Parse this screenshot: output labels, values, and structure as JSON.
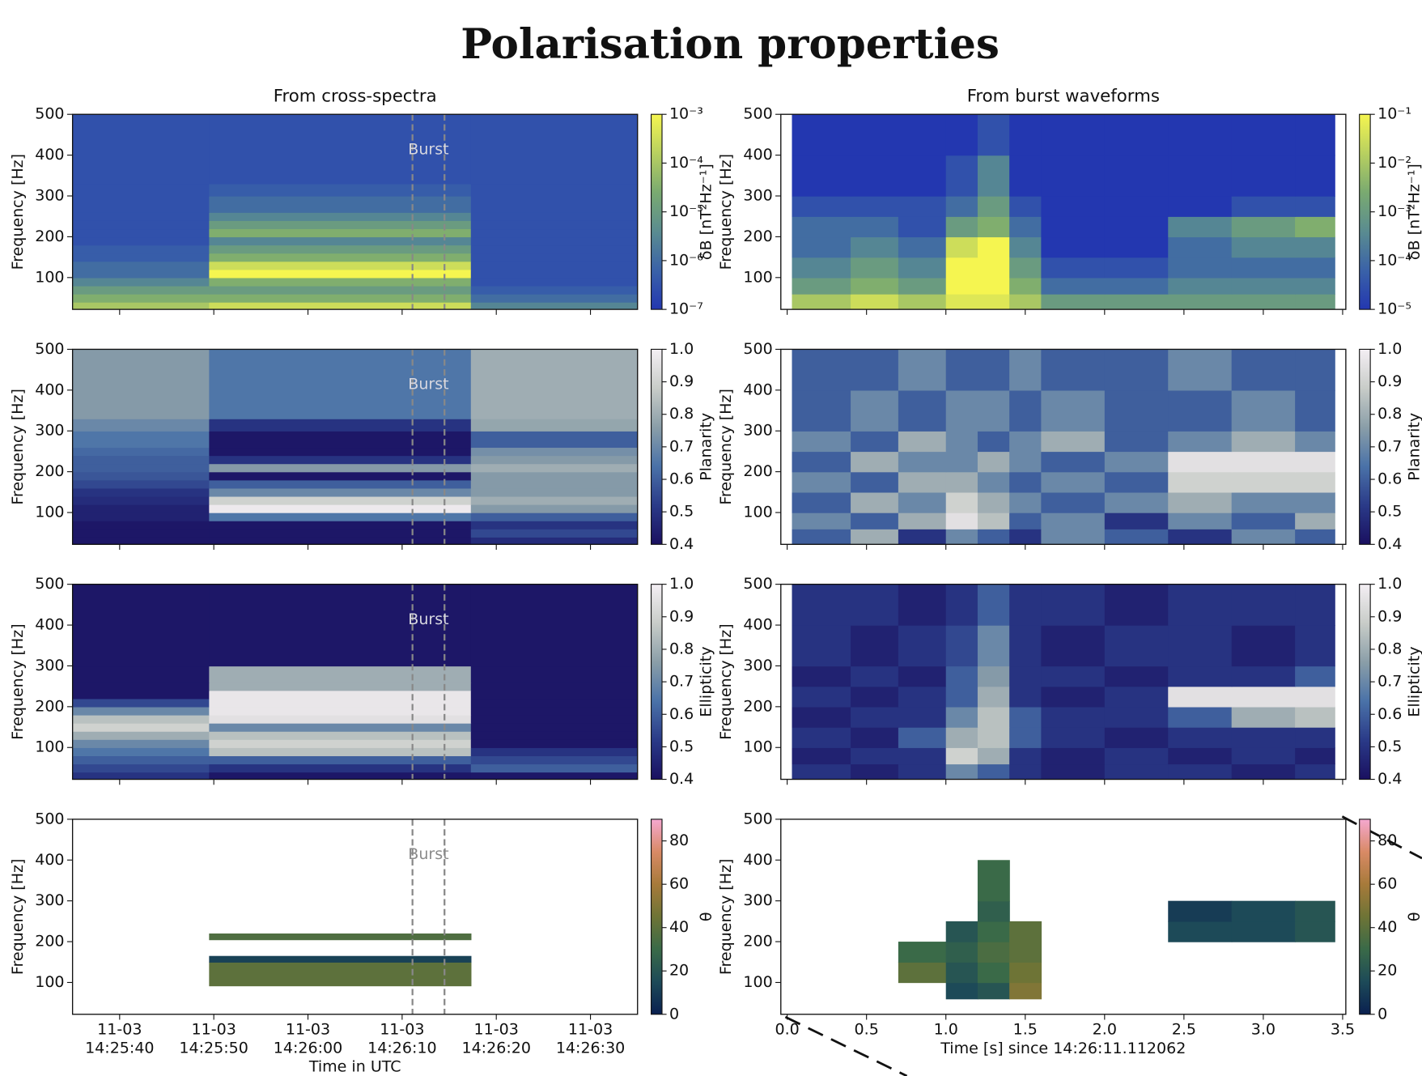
{
  "title": "Polarisation properties",
  "chart_data": [
    {
      "type": "heatmap",
      "title": "From cross-spectra",
      "ylabel": "Frequency [Hz]",
      "clabel": "δB [nT²Hz⁻¹]",
      "xlim": [
        "14:25:35",
        "14:26:35"
      ],
      "ylim": [
        22,
        500
      ],
      "yticks": [
        100,
        200,
        300,
        400,
        500
      ],
      "x": [
        "14:25:35",
        "14:25:49.5",
        "14:26:17.3",
        "14:26:35"
      ],
      "y": [
        22,
        40,
        60,
        80,
        100,
        120,
        140,
        160,
        180,
        200,
        220,
        240,
        260,
        300,
        330,
        500
      ],
      "z": [
        [
          0.0001,
          0.0003,
          3e-06
        ],
        [
          3e-05,
          3e-05,
          1e-06
        ],
        [
          1e-05,
          1e-05,
          5e-07
        ],
        [
          3e-06,
          3e-05,
          3e-07
        ],
        [
          1e-06,
          0.001,
          3e-07
        ],
        [
          1e-06,
          0.0003,
          3e-07
        ],
        [
          5e-07,
          3e-05,
          3e-07
        ],
        [
          5e-07,
          1e-05,
          3e-07
        ],
        [
          3e-07,
          3e-06,
          3e-07
        ],
        [
          3e-07,
          3e-05,
          3e-07
        ],
        [
          3e-07,
          1e-05,
          3e-07
        ],
        [
          3e-07,
          3e-06,
          3e-07
        ],
        [
          3e-07,
          1e-06,
          3e-07
        ],
        [
          3e-07,
          5e-07,
          3e-07
        ],
        [
          3e-07,
          3e-07,
          3e-07
        ]
      ],
      "log_color": true,
      "clim": [
        1e-07,
        0.001
      ],
      "cticks": [
        {
          "value": 1e-07,
          "label": "10⁻⁷"
        },
        {
          "value": 1e-06,
          "label": "10⁻⁶"
        },
        {
          "value": 1e-05,
          "label": "10⁻⁵"
        },
        {
          "value": 0.0001,
          "label": "10⁻⁴"
        },
        {
          "value": 0.001,
          "label": "10⁻³"
        }
      ],
      "cmap": [
        "#2337b0",
        "#3a62a8",
        "#5a8c90",
        "#7aaa70",
        "#b8d060",
        "#f5f550"
      ],
      "burst": [
        "14:26:11.1",
        "14:26:14.5"
      ],
      "burst_label": "Burst",
      "annotation_color": "#d8d8e0"
    },
    {
      "type": "heatmap",
      "title": "From burst waveforms",
      "ylabel": "Frequency [Hz]",
      "clabel": "δB [nT²Hz⁻¹]",
      "xlim": [
        -0.04,
        3.52
      ],
      "ylim": [
        22,
        500
      ],
      "yticks": [
        100,
        200,
        300,
        400,
        500
      ],
      "x": [
        0.03,
        0.4,
        0.7,
        1.0,
        1.2,
        1.4,
        1.6,
        2.0,
        2.4,
        2.8,
        3.2,
        3.45
      ],
      "y": [
        22,
        60,
        100,
        150,
        200,
        250,
        300,
        400,
        500
      ],
      "z": [
        [
          0.01,
          0.03,
          0.01,
          0.05,
          0.05,
          0.01,
          0.001,
          0.001,
          0.001,
          0.001,
          0.001
        ],
        [
          0.001,
          0.003,
          0.001,
          0.1,
          0.1,
          0.003,
          0.0001,
          0.0001,
          0.0003,
          0.0003,
          0.0003
        ],
        [
          0.0003,
          0.001,
          0.0003,
          0.1,
          0.1,
          0.001,
          3e-05,
          3e-05,
          0.0001,
          0.0001,
          0.0001
        ],
        [
          0.0001,
          0.0003,
          0.0001,
          0.03,
          0.1,
          0.0003,
          1e-05,
          1e-05,
          0.0001,
          0.0003,
          0.0003
        ],
        [
          0.0001,
          0.0001,
          3e-05,
          0.001,
          0.003,
          0.0001,
          1e-05,
          1e-05,
          0.0003,
          0.001,
          0.003
        ],
        [
          3e-05,
          3e-05,
          3e-05,
          0.0001,
          0.001,
          3e-05,
          1e-05,
          1e-05,
          1e-05,
          3e-05,
          3e-05
        ],
        [
          1e-05,
          1e-05,
          1e-05,
          3e-05,
          0.0003,
          1e-05,
          1e-05,
          1e-05,
          1e-05,
          1e-05,
          1e-05
        ],
        [
          1e-05,
          1e-05,
          1e-05,
          1e-05,
          3e-05,
          1e-05,
          1e-05,
          1e-05,
          1e-05,
          1e-05,
          1e-05
        ]
      ],
      "log_color": true,
      "clim": [
        1e-05,
        0.1
      ],
      "cticks": [
        {
          "value": 1e-05,
          "label": "10⁻⁵"
        },
        {
          "value": 0.0001,
          "label": "10⁻⁴"
        },
        {
          "value": 0.001,
          "label": "10⁻³"
        },
        {
          "value": 0.01,
          "label": "10⁻²"
        },
        {
          "value": 0.1,
          "label": "10⁻¹"
        }
      ],
      "cmap": [
        "#2337b0",
        "#3a62a8",
        "#5a8c90",
        "#7aaa70",
        "#b8d060",
        "#f5f550"
      ]
    },
    {
      "type": "heatmap",
      "ylabel": "Frequency [Hz]",
      "clabel": "Planarity",
      "xlim": [
        "14:25:35",
        "14:26:35"
      ],
      "ylim": [
        22,
        500
      ],
      "yticks": [
        100,
        200,
        300,
        400,
        500
      ],
      "x": [
        "14:25:35",
        "14:25:49.5",
        "14:26:17.3",
        "14:26:35"
      ],
      "y": [
        22,
        40,
        60,
        80,
        100,
        120,
        140,
        160,
        180,
        200,
        220,
        240,
        260,
        300,
        330,
        500
      ],
      "z": [
        [
          0.42,
          0.42,
          0.48
        ],
        [
          0.42,
          0.42,
          0.55
        ],
        [
          0.42,
          0.42,
          0.5
        ],
        [
          0.45,
          0.65,
          0.6
        ],
        [
          0.45,
          0.98,
          0.75
        ],
        [
          0.48,
          0.9,
          0.8
        ],
        [
          0.5,
          0.7,
          0.75
        ],
        [
          0.55,
          0.6,
          0.75
        ],
        [
          0.58,
          0.42,
          0.75
        ],
        [
          0.6,
          0.75,
          0.8
        ],
        [
          0.6,
          0.5,
          0.75
        ],
        [
          0.62,
          0.42,
          0.72
        ],
        [
          0.65,
          0.42,
          0.6
        ],
        [
          0.7,
          0.5,
          0.78
        ],
        [
          0.75,
          0.65,
          0.8
        ]
      ],
      "log_color": false,
      "clim": [
        0.4,
        1.0
      ],
      "cticks": [
        0.4,
        0.5,
        0.6,
        0.7,
        0.8,
        0.9,
        {
          "value": 1,
          "label": "1.0"
        }
      ],
      "cmap": [
        "#1a1060",
        "#2a3a88",
        "#4a72a8",
        "#8a9ea8",
        "#c8ccc8",
        "#f4eff4"
      ],
      "burst": [
        "14:26:11.1",
        "14:26:14.5"
      ],
      "burst_label": "Burst",
      "annotation_color": "#d8d8e0"
    },
    {
      "type": "heatmap",
      "ylabel": "Frequency [Hz]",
      "clabel": "Planarity",
      "xlim": [
        -0.04,
        3.52
      ],
      "ylim": [
        22,
        500
      ],
      "yticks": [
        100,
        200,
        300,
        400,
        500
      ],
      "x": [
        0.03,
        0.4,
        0.7,
        1.0,
        1.2,
        1.4,
        1.6,
        2.0,
        2.4,
        2.8,
        3.2,
        3.45
      ],
      "y": [
        22,
        60,
        100,
        150,
        200,
        250,
        300,
        400,
        500
      ],
      "z": [
        [
          0.6,
          0.8,
          0.5,
          0.7,
          0.6,
          0.5,
          0.7,
          0.6,
          0.5,
          0.7,
          0.6
        ],
        [
          0.7,
          0.6,
          0.8,
          0.95,
          0.85,
          0.6,
          0.7,
          0.5,
          0.7,
          0.6,
          0.8
        ],
        [
          0.6,
          0.8,
          0.7,
          0.9,
          0.8,
          0.7,
          0.6,
          0.7,
          0.8,
          0.7,
          0.7
        ],
        [
          0.7,
          0.6,
          0.8,
          0.8,
          0.7,
          0.6,
          0.7,
          0.6,
          0.9,
          0.9,
          0.9
        ],
        [
          0.6,
          0.8,
          0.7,
          0.7,
          0.8,
          0.7,
          0.6,
          0.7,
          0.95,
          0.95,
          0.95
        ],
        [
          0.7,
          0.6,
          0.8,
          0.7,
          0.6,
          0.7,
          0.8,
          0.6,
          0.7,
          0.8,
          0.7
        ],
        [
          0.6,
          0.7,
          0.6,
          0.7,
          0.7,
          0.6,
          0.7,
          0.6,
          0.6,
          0.7,
          0.6
        ],
        [
          0.6,
          0.6,
          0.7,
          0.6,
          0.6,
          0.7,
          0.6,
          0.6,
          0.7,
          0.6,
          0.6
        ]
      ],
      "log_color": false,
      "clim": [
        0.4,
        1.0
      ],
      "cticks": [
        0.4,
        0.5,
        0.6,
        0.7,
        0.8,
        0.9,
        {
          "value": 1,
          "label": "1.0"
        }
      ],
      "cmap": [
        "#1a1060",
        "#2a3a88",
        "#4a72a8",
        "#8a9ea8",
        "#c8ccc8",
        "#f4eff4"
      ]
    },
    {
      "type": "heatmap",
      "ylabel": "Frequency [Hz]",
      "clabel": "Ellipticity",
      "xlim": [
        "14:25:35",
        "14:26:35"
      ],
      "ylim": [
        22,
        500
      ],
      "yticks": [
        100,
        200,
        300,
        400,
        500
      ],
      "x": [
        "14:25:35",
        "14:25:49.5",
        "14:26:17.3",
        "14:26:35"
      ],
      "y": [
        22,
        40,
        60,
        80,
        100,
        120,
        140,
        160,
        180,
        200,
        220,
        240,
        260,
        300,
        330,
        500
      ],
      "z": [
        [
          0.5,
          0.42,
          0.42
        ],
        [
          0.55,
          0.5,
          0.6
        ],
        [
          0.6,
          0.6,
          0.55
        ],
        [
          0.65,
          0.85,
          0.5
        ],
        [
          0.7,
          0.9,
          0.42
        ],
        [
          0.8,
          0.85,
          0.42
        ],
        [
          0.9,
          0.7,
          0.42
        ],
        [
          0.85,
          0.95,
          0.42
        ],
        [
          0.7,
          0.97,
          0.42
        ],
        [
          0.55,
          0.97,
          0.42
        ],
        [
          0.42,
          0.97,
          0.42
        ],
        [
          0.42,
          0.8,
          0.42
        ],
        [
          0.42,
          0.8,
          0.42
        ],
        [
          0.42,
          0.42,
          0.42
        ],
        [
          0.42,
          0.42,
          0.42
        ]
      ],
      "log_color": false,
      "clim": [
        0.4,
        1.0
      ],
      "cticks": [
        0.4,
        0.5,
        0.6,
        0.7,
        0.8,
        0.9,
        {
          "value": 1,
          "label": "1.0"
        }
      ],
      "cmap": [
        "#1a1060",
        "#2a3a88",
        "#4a72a8",
        "#8a9ea8",
        "#c8ccc8",
        "#f4eff4"
      ],
      "burst": [
        "14:26:11.1",
        "14:26:14.5"
      ],
      "burst_label": "Burst",
      "annotation_color": "#d8d8e0"
    },
    {
      "type": "heatmap",
      "ylabel": "Frequency [Hz]",
      "clabel": "Ellipticity",
      "xlim": [
        -0.04,
        3.52
      ],
      "ylim": [
        22,
        500
      ],
      "yticks": [
        100,
        200,
        300,
        400,
        500
      ],
      "x": [
        0.03,
        0.4,
        0.7,
        1.0,
        1.2,
        1.4,
        1.6,
        2.0,
        2.4,
        2.8,
        3.2,
        3.45
      ],
      "y": [
        22,
        60,
        100,
        150,
        200,
        250,
        300,
        400,
        500
      ],
      "z": [
        [
          0.5,
          0.45,
          0.5,
          0.7,
          0.6,
          0.5,
          0.45,
          0.5,
          0.5,
          0.45,
          0.5
        ],
        [
          0.45,
          0.5,
          0.5,
          0.9,
          0.8,
          0.5,
          0.45,
          0.5,
          0.45,
          0.5,
          0.45
        ],
        [
          0.5,
          0.45,
          0.6,
          0.8,
          0.85,
          0.6,
          0.5,
          0.45,
          0.5,
          0.5,
          0.5
        ],
        [
          0.45,
          0.5,
          0.5,
          0.7,
          0.85,
          0.6,
          0.5,
          0.5,
          0.6,
          0.8,
          0.85
        ],
        [
          0.5,
          0.45,
          0.5,
          0.6,
          0.8,
          0.5,
          0.45,
          0.5,
          0.95,
          0.95,
          0.95
        ],
        [
          0.45,
          0.5,
          0.45,
          0.6,
          0.75,
          0.5,
          0.5,
          0.45,
          0.5,
          0.5,
          0.6
        ],
        [
          0.5,
          0.45,
          0.5,
          0.55,
          0.7,
          0.5,
          0.45,
          0.5,
          0.5,
          0.45,
          0.5
        ],
        [
          0.5,
          0.5,
          0.45,
          0.5,
          0.6,
          0.5,
          0.5,
          0.45,
          0.5,
          0.5,
          0.5
        ]
      ],
      "log_color": false,
      "clim": [
        0.4,
        1.0
      ],
      "cticks": [
        0.4,
        0.5,
        0.6,
        0.7,
        0.8,
        0.9,
        {
          "value": 1,
          "label": "1.0"
        }
      ],
      "cmap": [
        "#1a1060",
        "#2a3a88",
        "#4a72a8",
        "#8a9ea8",
        "#c8ccc8",
        "#f4eff4"
      ]
    },
    {
      "type": "heatmap",
      "ylabel": "Frequency [Hz]",
      "clabel": "θ",
      "xlabel": "Time in UTC",
      "xlim": [
        "14:25:35",
        "14:26:35"
      ],
      "ylim": [
        22,
        500
      ],
      "yticks": [
        100,
        200,
        300,
        400,
        500
      ],
      "xticks": [
        {
          "value": "14:25:40",
          "label": "11-03\n14:25:40"
        },
        {
          "value": "14:25:50",
          "label": "11-03\n14:25:50"
        },
        {
          "value": "14:26:00",
          "label": "11-03\n14:26:00"
        },
        {
          "value": "14:26:10",
          "label": "11-03\n14:26:10"
        },
        {
          "value": "14:26:20",
          "label": "11-03\n14:26:20"
        },
        {
          "value": "14:26:30",
          "label": "11-03\n14:26:30"
        }
      ],
      "x": [
        "14:25:35",
        "14:25:49.5",
        "14:26:17.3",
        "14:26:35"
      ],
      "y": [
        22,
        92,
        150,
        165,
        205,
        220,
        500
      ],
      "z": [
        [
          null,
          null,
          null
        ],
        [
          null,
          40,
          null
        ],
        [
          null,
          12,
          null
        ],
        [
          null,
          null,
          null
        ],
        [
          null,
          36,
          null
        ],
        [
          null,
          null,
          null
        ]
      ],
      "log_color": false,
      "clim": [
        0,
        90
      ],
      "cticks": [
        0,
        20,
        40,
        60,
        80
      ],
      "cmap": [
        "#0a2050",
        "#1d4a58",
        "#3a6a48",
        "#6e7436",
        "#a77a3a",
        "#d98a66",
        "#f5a8d0"
      ],
      "burst": [
        "14:26:11.1",
        "14:26:14.5"
      ],
      "burst_label": "Burst",
      "annotation_color": "#8a8a8a"
    },
    {
      "type": "heatmap",
      "ylabel": "Frequency [Hz]",
      "clabel": "θ",
      "xlabel": "Time [s] since 14:26:11.112062",
      "xlim": [
        -0.04,
        3.52
      ],
      "ylim": [
        22,
        500
      ],
      "yticks": [
        100,
        200,
        300,
        400,
        500
      ],
      "xticks": [
        {
          "value": 0,
          "label": "0.0"
        },
        0.5,
        {
          "value": 1,
          "label": "1.0"
        },
        1.5,
        {
          "value": 2,
          "label": "2.0"
        },
        2.5,
        {
          "value": 3,
          "label": "3.0"
        },
        3.5
      ],
      "x": [
        0.03,
        0.4,
        0.7,
        1.0,
        1.2,
        1.4,
        1.6,
        2.0,
        2.4,
        2.8,
        3.2,
        3.45
      ],
      "y": [
        22,
        60,
        100,
        150,
        200,
        250,
        300,
        400,
        500
      ],
      "z": [
        [
          null,
          null,
          null,
          null,
          null,
          null,
          null,
          null,
          null,
          null,
          null
        ],
        [
          null,
          null,
          null,
          15,
          20,
          50,
          null,
          null,
          null,
          null,
          null
        ],
        [
          null,
          null,
          40,
          20,
          30,
          45,
          null,
          null,
          null,
          null,
          null
        ],
        [
          null,
          null,
          30,
          25,
          35,
          40,
          null,
          null,
          null,
          null,
          null
        ],
        [
          null,
          null,
          null,
          20,
          30,
          40,
          null,
          null,
          15,
          15,
          20
        ],
        [
          null,
          null,
          null,
          null,
          25,
          null,
          null,
          null,
          10,
          15,
          20
        ],
        [
          null,
          null,
          null,
          null,
          30,
          null,
          null,
          null,
          null,
          null,
          null
        ],
        [
          null,
          null,
          null,
          null,
          null,
          null,
          null,
          null,
          null,
          null,
          null
        ]
      ],
      "log_color": false,
      "clim": [
        0,
        90
      ],
      "cticks": [
        0,
        20,
        40,
        60,
        80
      ],
      "cmap": [
        "#0a2050",
        "#1d4a58",
        "#3a6a48",
        "#6e7436",
        "#a77a3a",
        "#d98a66",
        "#f5a8d0"
      ]
    }
  ]
}
